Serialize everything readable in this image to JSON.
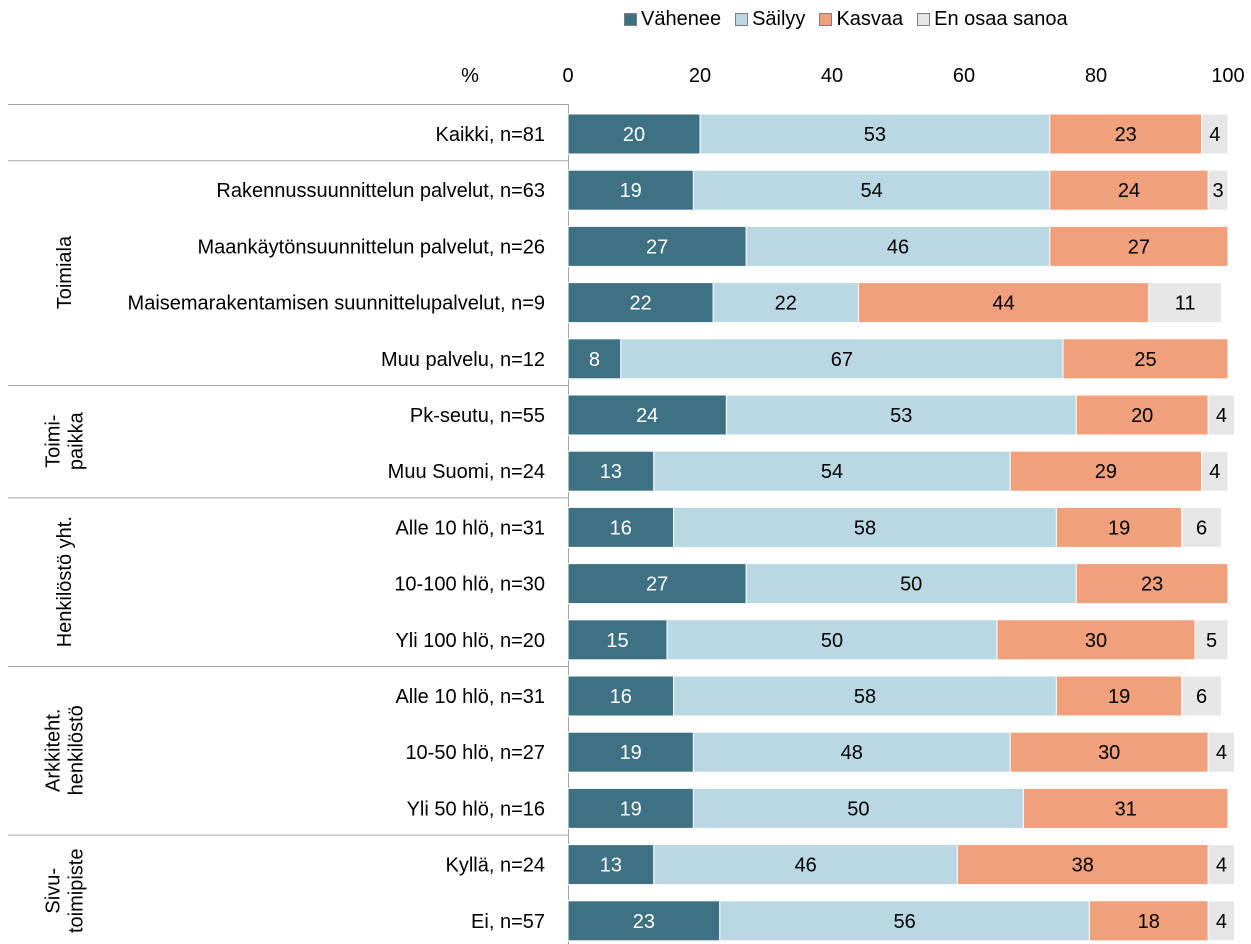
{
  "chart_data": {
    "type": "bar",
    "orientation": "horizontal",
    "stacked": true,
    "axis_unit_label": "%",
    "xlim": [
      0,
      100
    ],
    "xticks": [
      "0",
      "20",
      "40",
      "60",
      "80",
      "100"
    ],
    "grid": false,
    "legend_position": "top",
    "series": [
      {
        "name": "Vähenee",
        "color": "#3d7183",
        "text_color": "#ffffff"
      },
      {
        "name": "Säilyy",
        "color": "#b9d8e3",
        "text_color": "#000000"
      },
      {
        "name": "Kasvaa",
        "color": "#f0a07a",
        "text_color": "#000000"
      },
      {
        "name": "En osaa sanoa",
        "color": "#e6e6e6",
        "text_color": "#000000"
      }
    ],
    "groups": [
      {
        "label_lines": [],
        "rows": [
          {
            "label": "Kaikki, n=81",
            "values": [
              20,
              53,
              23,
              4
            ]
          }
        ]
      },
      {
        "label_lines": [
          "Toimiala"
        ],
        "rows": [
          {
            "label": "Rakennussuunnittelun palvelut, n=63",
            "values": [
              19,
              54,
              24,
              3
            ]
          },
          {
            "label": "Maankäytönsuunnittelun palvelut, n=26",
            "values": [
              27,
              46,
              27,
              0
            ]
          },
          {
            "label": "Maisemarakentamisen suunnittelupalvelut, n=9",
            "values": [
              22,
              22,
              44,
              11
            ]
          },
          {
            "label": "Muu palvelu, n=12",
            "values": [
              8,
              67,
              25,
              0
            ]
          }
        ]
      },
      {
        "label_lines": [
          "Toimi-",
          "paikka"
        ],
        "rows": [
          {
            "label": "Pk-seutu, n=55",
            "values": [
              24,
              53,
              20,
              4
            ]
          },
          {
            "label": "Muu Suomi, n=24",
            "values": [
              13,
              54,
              29,
              4
            ]
          }
        ]
      },
      {
        "label_lines": [
          "Henkilöstö yht."
        ],
        "rows": [
          {
            "label": "Alle 10 hlö, n=31",
            "values": [
              16,
              58,
              19,
              6
            ]
          },
          {
            "label": "10-100 hlö, n=30",
            "values": [
              27,
              50,
              23,
              0
            ]
          },
          {
            "label": "Yli 100 hlö, n=20",
            "values": [
              15,
              50,
              30,
              5
            ]
          }
        ]
      },
      {
        "label_lines": [
          "Arkkiteht.",
          "henkilöstö"
        ],
        "rows": [
          {
            "label": "Alle 10 hlö, n=31",
            "values": [
              16,
              58,
              19,
              6
            ]
          },
          {
            "label": "10-50 hlö, n=27",
            "values": [
              19,
              48,
              30,
              4
            ]
          },
          {
            "label": "Yli 50 hlö, n=16",
            "values": [
              19,
              50,
              31,
              0
            ]
          }
        ]
      },
      {
        "label_lines": [
          "Sivu-",
          "toimipiste"
        ],
        "rows": [
          {
            "label": "Kyllä, n=24",
            "values": [
              13,
              46,
              38,
              4
            ]
          },
          {
            "label": "Ei, n=57",
            "values": [
              23,
              56,
              18,
              4
            ]
          }
        ]
      }
    ]
  }
}
